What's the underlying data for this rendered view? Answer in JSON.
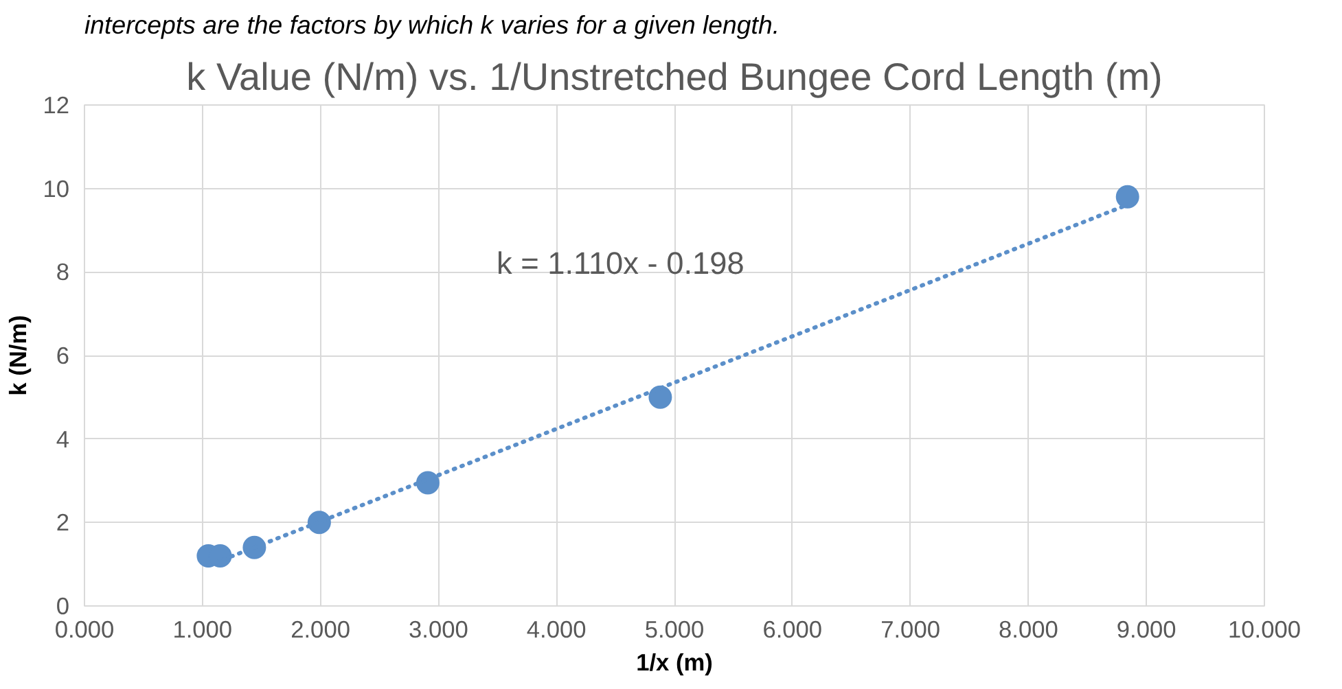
{
  "chart_data": {
    "type": "scatter",
    "title": "k Value (N/m) vs. 1/Unstretched Bungee Cord Length (m)",
    "xlabel": "1/x (m)",
    "ylabel": "k (N/m)",
    "annotations": [
      "intercepts are the factors by which k varies for a given length.",
      "k = 1.110x - 0.198"
    ],
    "x": [
      1.05,
      1.15,
      1.44,
      1.99,
      2.91,
      4.88,
      8.84
    ],
    "series": [
      {
        "color": "#5b8fc9",
        "values": [
          1.2,
          1.2,
          1.4,
          2.0,
          2.95,
          5.0,
          9.8
        ]
      },
      {
        "type": "line",
        "color": "#5b8fc9",
        "line_style": "dotted",
        "marker": "none",
        "x": [
          1.05,
          8.84
        ],
        "values": [
          0.97,
          9.61
        ]
      }
    ],
    "xlim": [
      0,
      10
    ],
    "ylim": [
      0,
      12
    ],
    "xticks": [
      {
        "value": 0,
        "label": "0.000"
      },
      {
        "value": 1,
        "label": "1.000"
      },
      {
        "value": 2,
        "label": "2.000"
      },
      {
        "value": 3,
        "label": "3.000"
      },
      {
        "value": 4,
        "label": "4.000"
      },
      {
        "value": 5,
        "label": "5.000"
      },
      {
        "value": 6,
        "label": "6.000"
      },
      {
        "value": 7,
        "label": "7.000"
      },
      {
        "value": 8,
        "label": "8.000"
      },
      {
        "value": 9,
        "label": "9.000"
      },
      {
        "value": 10,
        "label": "10.000"
      }
    ],
    "yticks": [
      0,
      2,
      4,
      6,
      8,
      10,
      12
    ],
    "grid": true
  }
}
